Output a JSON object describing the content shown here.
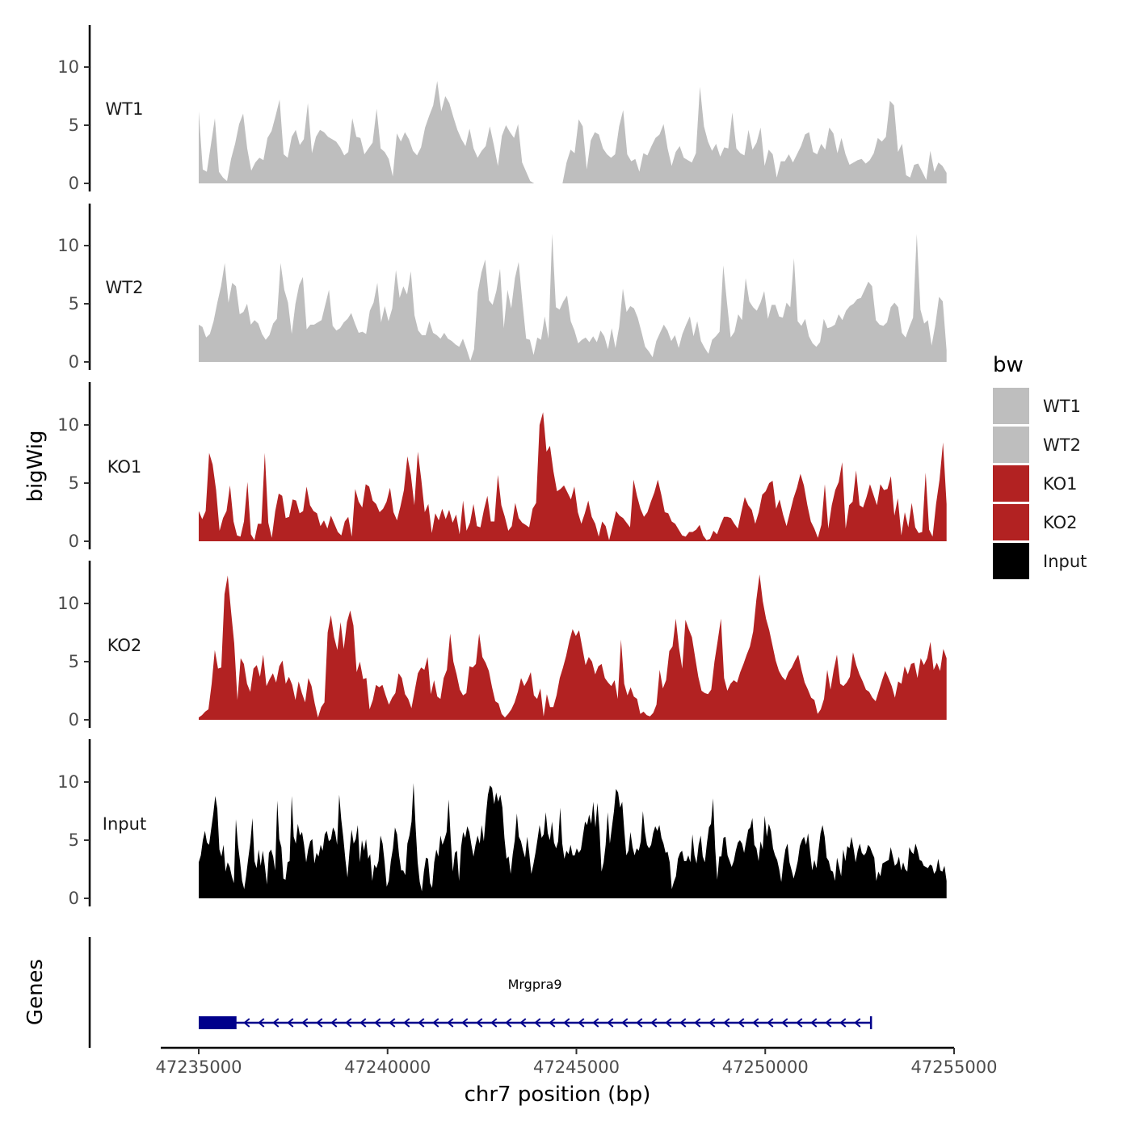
{
  "chart_data": {
    "type": "area",
    "ylabel": "bigWig",
    "xlabel": "chr7 position (bp)",
    "xlim": [
      47235000,
      47255000
    ],
    "x_ticks": [
      "47235000",
      "47240000",
      "47245000",
      "47250000",
      "47255000"
    ],
    "ylim": [
      0,
      13.5
    ],
    "y_ticks": [
      "0",
      "5",
      "10"
    ],
    "legend": {
      "title": "bw",
      "position": "right",
      "entries": [
        {
          "label": "WT1",
          "color": "#bebebe"
        },
        {
          "label": "WT2",
          "color": "#bebebe"
        },
        {
          "label": "KO1",
          "color": "#b22222"
        },
        {
          "label": "KO2",
          "color": "#b22222"
        },
        {
          "label": "Input",
          "color": "#000000"
        }
      ]
    },
    "x_start": 47235000,
    "x_step": 250,
    "series": [
      {
        "name": "WT1",
        "color": "#bebebe",
        "values": [
          6.2,
          1.2,
          1.0,
          3.3,
          5.6,
          1.0,
          0.5,
          0.2,
          2.1,
          3.4,
          5.1,
          6.0,
          3.0,
          1.1,
          1.8,
          2.2,
          2.0,
          3.9,
          4.5,
          5.8,
          7.2,
          2.5,
          2.2,
          4.0,
          4.6,
          3.3,
          3.8,
          6.9,
          2.6,
          4.0,
          4.6,
          4.4,
          4.0,
          3.8,
          3.6,
          3.1,
          2.4,
          2.7,
          5.6,
          4.0,
          3.9,
          2.5,
          3.0,
          3.5,
          6.4,
          3.0,
          2.7,
          2.1,
          0.6,
          4.3,
          3.6,
          4.4,
          3.8,
          2.8,
          2.4,
          3.1,
          4.8,
          5.8,
          6.7,
          8.8,
          6.2,
          7.5,
          6.9,
          5.7,
          4.6,
          3.8,
          3.2,
          4.7,
          3.0,
          2.2,
          2.8,
          3.2,
          4.9,
          3.3,
          1.5,
          4.1,
          5.0,
          4.4,
          3.9,
          5.1,
          1.8,
          1.0,
          0.2,
          0.0,
          0.0,
          0.0,
          0.0,
          0.0,
          0.0,
          0.0,
          0.0,
          1.8,
          2.9,
          2.6,
          5.5,
          4.9,
          1.2,
          3.7,
          4.4,
          4.2,
          3.0,
          2.5,
          2.2,
          2.5,
          4.9,
          6.3,
          2.5,
          1.9,
          2.1,
          1.0,
          2.6,
          2.4,
          3.2,
          3.9,
          4.2,
          5.1,
          3.0,
          1.5,
          2.7,
          3.2,
          2.2,
          2.0,
          1.8,
          2.6,
          8.3,
          4.9,
          3.6,
          2.8,
          3.4,
          2.3,
          3.1,
          3.0,
          6.1,
          3.0,
          2.6,
          2.4,
          4.6,
          2.9,
          3.5,
          4.8,
          1.5,
          2.9,
          2.5,
          0.5,
          1.9,
          1.9,
          2.5,
          1.8,
          2.5,
          3.2,
          4.2,
          4.4,
          2.7,
          2.5,
          3.4,
          2.9,
          4.8,
          4.3,
          2.6,
          3.9,
          2.5,
          1.6,
          1.8,
          2.0,
          2.1,
          1.7,
          2.0,
          2.6,
          3.9,
          3.6,
          4.0,
          7.1,
          6.7,
          2.7,
          3.4,
          0.7,
          0.5,
          1.6,
          1.7,
          1.0,
          0.3,
          2.8,
          1.0,
          1.8,
          1.5,
          0.9
        ]
      },
      {
        "name": "WT2",
        "color": "#bebebe",
        "values": [
          3.2,
          3.0,
          2.1,
          2.4,
          3.5,
          5.1,
          6.5,
          8.5,
          5.1,
          6.8,
          6.5,
          4.1,
          4.3,
          5.0,
          3.2,
          3.6,
          3.3,
          2.4,
          1.9,
          2.3,
          3.3,
          3.7,
          8.5,
          6.2,
          5.1,
          2.4,
          5.0,
          6.6,
          7.3,
          2.8,
          3.2,
          3.2,
          3.4,
          3.6,
          4.9,
          6.2,
          3.1,
          2.7,
          2.9,
          3.4,
          3.7,
          4.2,
          3.3,
          2.5,
          2.6,
          2.4,
          4.4,
          5.1,
          6.8,
          3.4,
          4.8,
          3.5,
          4.6,
          7.9,
          5.5,
          6.5,
          5.8,
          7.8,
          4.0,
          2.7,
          2.3,
          2.3,
          3.5,
          2.5,
          2.3,
          2.0,
          2.5,
          2.0,
          1.8,
          1.5,
          1.3,
          2.0,
          1.1,
          0.1,
          1.1,
          6.0,
          7.7,
          8.8,
          5.3,
          4.9,
          6.1,
          8.0,
          2.9,
          6.2,
          4.6,
          7.2,
          8.6,
          5.1,
          2.0,
          1.9,
          0.6,
          2.1,
          1.9,
          3.9,
          2.0,
          11.0,
          4.7,
          4.5,
          5.2,
          5.7,
          3.5,
          2.7,
          1.6,
          1.9,
          2.1,
          1.7,
          2.2,
          1.7,
          2.7,
          2.2,
          1.1,
          2.9,
          1.2,
          3.0,
          6.3,
          4.3,
          4.8,
          4.6,
          3.8,
          2.6,
          1.3,
          0.9,
          0.4,
          1.8,
          2.5,
          3.2,
          2.7,
          1.8,
          2.3,
          1.2,
          2.4,
          3.2,
          3.9,
          2.2,
          3.5,
          1.8,
          1.2,
          0.7,
          1.9,
          2.2,
          2.6,
          8.3,
          5.1,
          2.1,
          2.6,
          4.1,
          3.6,
          7.2,
          5.2,
          4.7,
          4.4,
          5.1,
          6.1,
          3.7,
          4.9,
          4.9,
          3.9,
          3.8,
          5.1,
          4.7,
          8.9,
          3.5,
          3.1,
          3.7,
          2.2,
          1.6,
          1.3,
          1.7,
          3.7,
          2.9,
          3.0,
          3.2,
          4.1,
          3.6,
          4.4,
          4.8,
          5.0,
          5.4,
          5.5,
          6.2,
          6.9,
          6.5,
          3.6,
          3.2,
          3.1,
          3.4,
          4.7,
          5.1,
          4.7,
          2.5,
          2.1,
          3.0,
          3.8,
          11.0,
          4.5,
          3.3,
          3.6,
          1.4,
          3.2,
          5.6,
          5.2,
          1.0
        ]
      },
      {
        "name": "KO1",
        "color": "#b22222",
        "values": [
          2.6,
          1.9,
          2.6,
          7.6,
          6.6,
          4.4,
          0.9,
          2.0,
          2.6,
          4.8,
          1.7,
          0.5,
          0.4,
          1.7,
          5.1,
          0.6,
          0.1,
          1.5,
          1.5,
          7.6,
          1.6,
          0.3,
          2.6,
          4.1,
          3.9,
          2.0,
          2.1,
          3.6,
          3.5,
          2.4,
          2.6,
          4.7,
          3.1,
          2.6,
          2.4,
          1.3,
          1.8,
          1.1,
          2.2,
          1.5,
          0.8,
          0.5,
          1.7,
          2.1,
          0.4,
          4.5,
          3.4,
          2.9,
          4.9,
          4.7,
          3.5,
          3.2,
          2.5,
          2.8,
          3.4,
          4.6,
          2.5,
          1.8,
          3.0,
          4.4,
          7.3,
          5.7,
          3.1,
          7.7,
          5.3,
          2.5,
          3.2,
          0.7,
          2.4,
          1.8,
          2.8,
          1.9,
          2.7,
          1.6,
          2.3,
          0.6,
          3.5,
          0.9,
          1.6,
          3.2,
          1.3,
          1.2,
          2.7,
          3.9,
          1.7,
          1.7,
          5.7,
          3.1,
          2.1,
          0.9,
          1.3,
          3.3,
          2.0,
          1.6,
          1.4,
          1.2,
          2.8,
          3.3,
          10.0,
          11.1,
          7.7,
          8.2,
          6.0,
          4.3,
          4.5,
          4.8,
          4.2,
          3.6,
          4.7,
          2.5,
          1.5,
          2.4,
          3.5,
          2.1,
          1.5,
          0.4,
          1.7,
          1.3,
          0.1,
          1.3,
          2.6,
          2.2,
          2.0,
          1.6,
          1.2,
          5.3,
          3.9,
          2.8,
          2.1,
          2.5,
          3.4,
          4.2,
          5.3,
          4.0,
          2.5,
          2.4,
          1.7,
          1.5,
          1.0,
          0.5,
          0.4,
          0.8,
          0.8,
          1.0,
          1.4,
          0.5,
          0.1,
          0.2,
          0.9,
          0.6,
          1.4,
          2.1,
          2.1,
          2.0,
          1.5,
          1.1,
          2.5,
          3.8,
          3.1,
          2.7,
          1.5,
          2.5,
          4.0,
          4.3,
          5.0,
          5.2,
          2.8,
          3.6,
          2.3,
          1.3,
          2.5,
          3.7,
          4.6,
          5.8,
          4.8,
          3.1,
          1.7,
          1.1,
          0.3,
          1.4,
          4.9,
          1.1,
          3.1,
          4.4,
          5.1,
          6.8,
          1.1,
          3.1,
          3.4,
          6.1,
          3.1,
          2.9,
          3.8,
          4.9,
          4.0,
          3.1,
          4.9,
          4.4,
          4.5,
          5.6,
          2.2,
          3.7,
          0.5,
          2.5,
          1.2,
          3.3,
          1.2,
          0.7,
          0.8,
          5.9,
          1.0,
          0.4,
          3.2,
          5.3,
          8.5,
          3.2
        ]
      },
      {
        "name": "KO2",
        "color": "#b22222",
        "values": [
          0.2,
          0.4,
          0.7,
          0.9,
          3.1,
          6.0,
          4.4,
          4.5,
          10.8,
          12.4,
          9.4,
          6.6,
          1.7,
          5.3,
          4.8,
          3.1,
          2.4,
          4.4,
          4.7,
          3.7,
          5.6,
          2.9,
          3.5,
          4.0,
          3.2,
          4.6,
          5.1,
          3.1,
          3.7,
          3.0,
          1.7,
          3.3,
          2.3,
          1.5,
          3.6,
          2.9,
          1.4,
          0.2,
          1.1,
          1.5,
          7.5,
          9.0,
          7.1,
          6.0,
          8.4,
          6.1,
          8.4,
          9.4,
          8.1,
          4.1,
          5.0,
          3.5,
          3.6,
          0.9,
          1.7,
          3.0,
          2.8,
          3.0,
          2.1,
          1.3,
          1.9,
          2.3,
          4.0,
          3.6,
          2.2,
          1.8,
          1.0,
          2.5,
          4.0,
          4.5,
          4.3,
          5.4,
          2.2,
          3.4,
          2.0,
          1.8,
          3.6,
          4.3,
          7.4,
          5.0,
          3.9,
          2.6,
          2.1,
          2.3,
          4.6,
          4.5,
          4.8,
          7.4,
          5.4,
          4.9,
          4.2,
          2.8,
          1.6,
          1.4,
          0.5,
          0.2,
          0.5,
          0.9,
          1.5,
          2.4,
          3.6,
          2.9,
          3.4,
          4.1,
          2.1,
          1.8,
          2.7,
          0.3,
          2.2,
          1.1,
          1.1,
          2.1,
          3.6,
          4.5,
          5.5,
          6.8,
          7.8,
          7.2,
          7.7,
          6.2,
          4.7,
          5.4,
          5.0,
          3.9,
          4.6,
          4.8,
          3.6,
          3.2,
          2.9,
          3.4,
          1.8,
          6.9,
          3.1,
          2.1,
          2.8,
          2.0,
          1.8,
          0.5,
          0.7,
          0.4,
          0.3,
          0.6,
          1.3,
          4.3,
          2.7,
          3.4,
          5.9,
          6.3,
          8.7,
          6.2,
          4.4,
          8.6,
          7.8,
          7.1,
          5.4,
          3.7,
          2.5,
          2.3,
          2.2,
          2.6,
          5.0,
          6.8,
          8.7,
          3.6,
          2.5,
          3.1,
          3.4,
          3.2,
          4.1,
          4.8,
          5.6,
          6.3,
          7.6,
          10.3,
          12.5,
          10.2,
          8.7,
          7.7,
          6.4,
          5.1,
          4.2,
          3.7,
          3.4,
          4.1,
          4.5,
          5.1,
          5.6,
          4.3,
          3.2,
          2.6,
          1.9,
          1.7,
          0.5,
          0.9,
          1.8,
          4.3,
          2.6,
          4.3,
          5.6,
          3.1,
          2.9,
          3.2,
          3.7,
          5.8,
          4.7,
          3.9,
          3.3,
          2.6,
          2.4,
          1.9,
          1.6,
          2.5,
          3.4,
          4.2,
          3.6,
          2.9,
          1.9,
          3.3,
          3.1,
          4.6,
          3.9,
          4.8,
          4.9,
          3.6,
          5.3,
          4.7,
          5.3,
          6.7,
          4.3,
          4.9,
          4.2,
          6.1,
          5.3
        ]
      },
      {
        "name": "Input",
        "color": "#000000",
        "values": [
          3.1,
          3.7,
          5.0,
          5.8,
          4.8,
          4.6,
          5.9,
          7.2,
          8.8,
          7.7,
          4.2,
          3.6,
          4.6,
          2.3,
          3.1,
          2.7,
          1.9,
          1.3,
          6.8,
          4.6,
          3.2,
          1.5,
          0.8,
          2.0,
          3.5,
          4.8,
          6.9,
          3.2,
          2.6,
          4.2,
          2.8,
          4.1,
          2.8,
          1.2,
          3.9,
          4.2,
          3.6,
          2.4,
          8.4,
          5.1,
          4.4,
          1.7,
          1.6,
          3.1,
          3.2,
          8.8,
          5.3,
          4.7,
          6.4,
          5.4,
          5.7,
          4.6,
          3.1,
          4.2,
          4.9,
          5.1,
          3.0,
          3.9,
          3.6,
          4.6,
          4.1,
          5.5,
          5.8,
          4.9,
          5.1,
          6.1,
          5.7,
          4.6,
          8.9,
          6.8,
          5.2,
          3.3,
          1.8,
          4.1,
          5.9,
          4.7,
          5.1,
          6.3,
          3.1,
          5.0,
          4.1,
          5.1,
          3.4,
          3.8,
          1.5,
          2.9,
          2.6,
          3.2,
          5.4,
          4.7,
          3.1,
          1.0,
          1.5,
          3.2,
          4.3,
          6.1,
          5.5,
          3.7,
          2.4,
          2.4,
          2.0,
          4.7,
          5.4,
          6.6,
          9.9,
          6.1,
          3.1,
          1.4,
          0.6,
          2.3,
          3.5,
          3.4,
          1.3,
          0.9,
          3.1,
          4.2,
          3.6,
          5.4,
          4.6,
          5.1,
          5.7,
          8.5,
          5.0,
          2.3,
          3.9,
          4.1,
          1.5,
          4.4,
          5.7,
          5.2,
          6.2,
          5.7,
          4.6,
          3.6,
          4.6,
          5.4,
          4.7,
          6.3,
          4.9,
          7.1,
          8.9,
          9.7,
          9.5,
          8.1,
          9.1,
          8.3,
          8.9,
          7.8,
          5.2,
          3.4,
          3.6,
          2.1,
          3.8,
          5.0,
          7.3,
          5.3,
          4.9,
          4.1,
          3.5,
          5.3,
          3.9,
          2.1,
          2.9,
          3.9,
          5.1,
          6.3,
          5.2,
          5.5,
          7.4,
          5.6,
          5.0,
          6.6,
          4.8,
          4.3,
          4.9,
          7.8,
          4.7,
          3.4,
          4.1,
          3.8,
          4.6,
          3.7,
          3.7,
          4.3,
          3.9,
          4.2,
          5.4,
          6.6,
          6.3,
          7.2,
          6.4,
          8.3,
          6.1,
          8.2,
          5.9,
          2.3,
          3.1,
          4.6,
          7.4,
          4.7,
          6.1,
          7.5,
          9.4,
          9.1,
          7.8,
          8.3,
          5.8,
          3.7,
          4.1,
          5.7,
          4.4,
          3.7,
          4.3,
          4.1,
          4.9,
          7.5,
          5.7,
          4.6,
          4.3,
          4.6,
          5.6,
          6.2,
          5.8,
          6.3,
          5.2,
          4.7,
          3.9,
          4.0,
          3.1,
          0.8,
          1.4,
          1.9,
          3.4,
          3.9,
          4.1,
          3.2,
          3.2,
          3.7,
          3.1,
          5.5,
          3.7,
          3.0,
          4.6,
          5.4,
          3.6,
          3.1,
          4.7,
          6.1,
          6.4,
          8.6,
          4.3,
          1.6,
          3.6,
          3.6,
          5.2,
          5.3,
          3.7,
          3.2,
          2.7,
          3.2,
          4.1,
          4.8,
          5.0,
          4.7,
          3.9,
          4.9,
          5.9,
          6.1,
          6.9,
          4.6,
          4.3,
          3.2,
          4.9,
          4.2,
          7.1,
          5.3,
          6.4,
          5.8,
          4.3,
          3.7,
          3.3,
          2.5,
          1.4,
          3.0,
          4.2,
          4.7,
          3.1,
          2.4,
          1.7,
          2.4,
          3.2,
          4.5,
          5.0,
          5.3,
          4.6,
          5.6,
          3.9,
          2.4,
          3.3,
          2.6,
          4.1,
          5.6,
          6.3,
          5.3,
          3.5,
          3.2,
          2.4,
          2.3,
          1.5,
          3.5,
          2.7,
          1.9,
          4.2,
          3.2,
          4.5,
          4.3,
          5.3,
          4.3,
          3.1,
          4.1,
          4.7,
          3.9,
          3.7,
          3.9,
          4.6,
          4.4,
          3.9,
          3.5,
          1.5,
          2.3,
          1.9,
          3.0,
          3.1,
          3.2,
          3.3,
          4.4,
          3.6,
          2.8,
          3.0,
          3.6,
          2.4,
          3.1,
          2.5,
          2.3,
          4.4,
          4.0,
          3.8,
          4.7,
          4.1,
          3.3,
          3.2,
          2.8,
          2.7,
          2.6,
          2.9,
          2.8,
          2.1,
          2.4,
          3.4,
          2.4,
          2.3,
          2.8,
          1.5
        ]
      }
    ],
    "gene": {
      "track_label": "Genes",
      "name": "Mrgpra9",
      "start": 47235000,
      "end": 47252800,
      "thick_end": 47236000,
      "strand": "-",
      "color": "#00008b"
    }
  }
}
